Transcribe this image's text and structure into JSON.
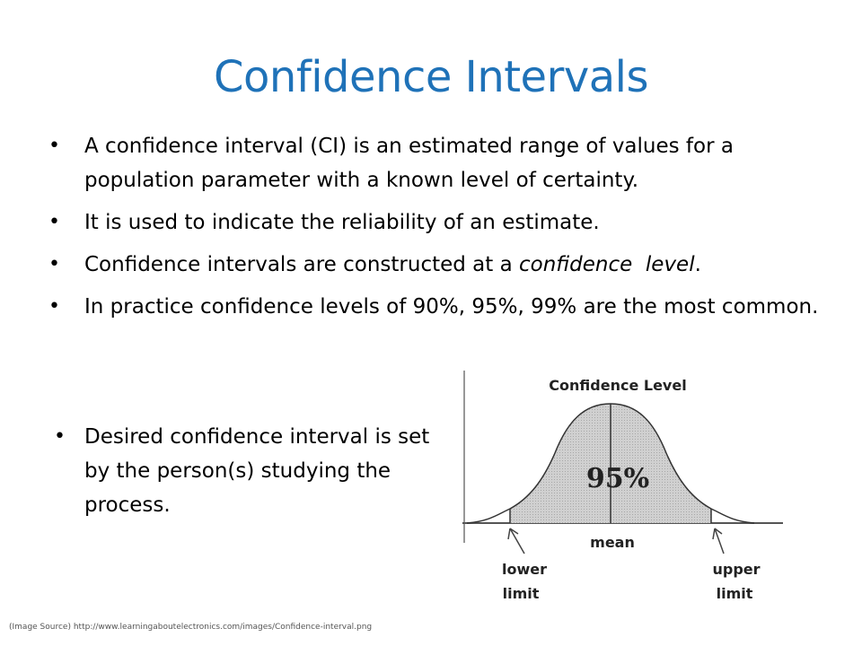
{
  "slide": {
    "title": "Confidence Intervals",
    "bullets": [
      "A confidence interval (CI) is an estimated range of values for a population parameter with a known level of certainty.",
      "It is used to indicate the reliability of an estimate.",
      "Confidence intervals are constructed at a ",
      "In practice confidence levels of 90%, 95%, 99% are the most common."
    ],
    "bullet3_emphasis": "confidence  level",
    "bullet3_end": ".",
    "bullet_side": "Desired confidence interval is set by the person(s) studying the process.",
    "source": "(Image Source) http://www.learningaboutelectronics.com/images/Confidence-interval.png"
  },
  "figure": {
    "header": "Confidence Level",
    "percent": "95%",
    "mean_label": "mean",
    "lower_label_1": "lower",
    "lower_label_2": "limit",
    "upper_label_1": "upper",
    "upper_label_2": "limit"
  },
  "colors": {
    "title": "#1f72b8",
    "shade": "#c8c8c8"
  }
}
